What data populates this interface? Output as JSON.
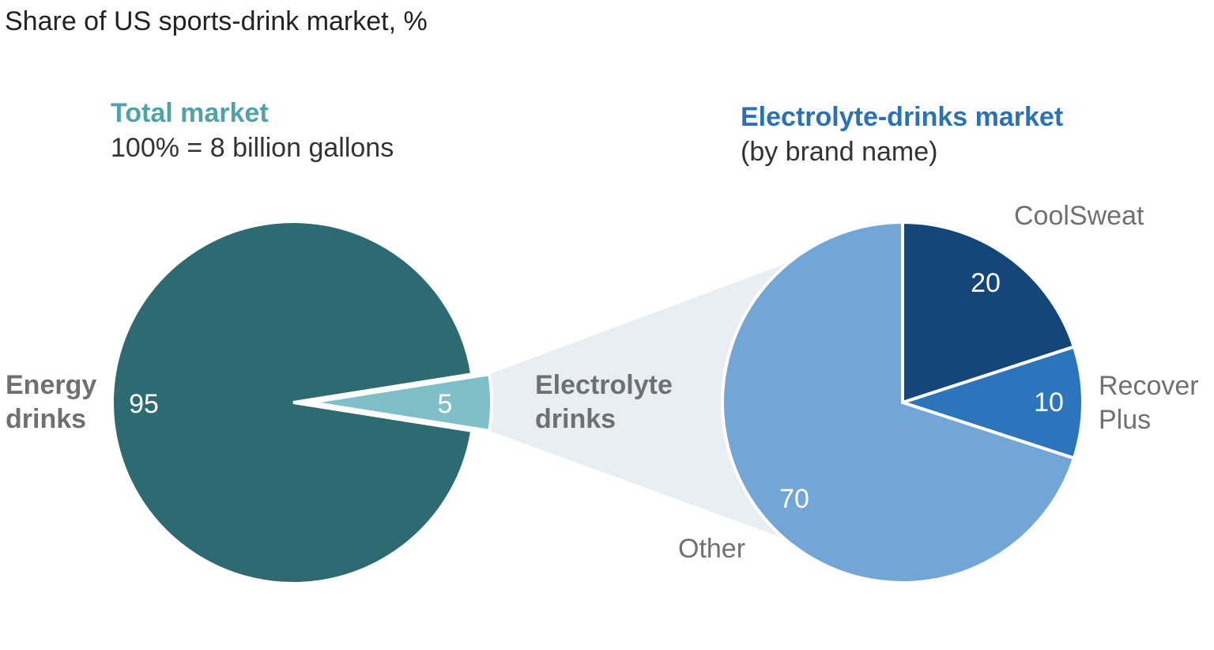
{
  "title": "Share of US sports-drink market, %",
  "chart_data": [
    {
      "type": "pie",
      "title": "Total market",
      "subtitle": "100% = 8 billion gallons",
      "colors": {
        "title": "#4ea3a9"
      },
      "slices": [
        {
          "label": [
            "Energy",
            "drinks"
          ],
          "value": 95,
          "value_label": "95",
          "color": "#2e6a72"
        },
        {
          "label": [
            "Electrolyte",
            "drinks"
          ],
          "value": 5,
          "value_label": "5",
          "color": "#7fc0c8"
        }
      ]
    },
    {
      "type": "pie",
      "title": "Electrolyte-drinks market",
      "subtitle": "(by brand name)",
      "colors": {
        "title": "#2a71b8"
      },
      "slices": [
        {
          "label": [
            "CoolSweat"
          ],
          "value": 20,
          "value_label": "20",
          "color": "#15467a"
        },
        {
          "label": [
            "Recover",
            "Plus"
          ],
          "value": 10,
          "value_label": "10",
          "color": "#2c74bc"
        },
        {
          "label": [
            "Other"
          ],
          "value": 70,
          "value_label": "70",
          "color": "#72a6d6"
        }
      ]
    }
  ],
  "colors": {
    "connector": "#e9eef2",
    "separator": "#ffffff"
  }
}
